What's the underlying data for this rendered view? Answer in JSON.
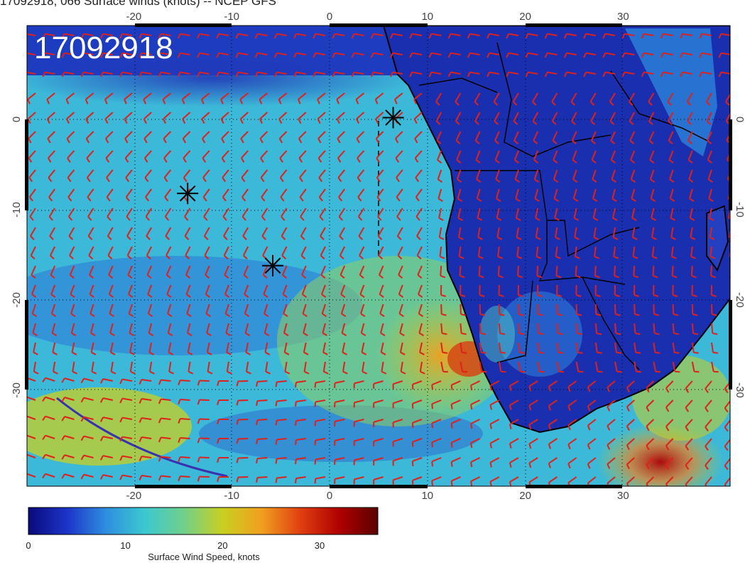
{
  "header": {
    "title": "17092918, 066 Surface winds (knots) -- NCEP GFS"
  },
  "map": {
    "overlay_label": "17092918",
    "lon_ticks": [
      "-20",
      "-10",
      "0",
      "10",
      "20",
      "30"
    ],
    "lat_ticks": [
      "0",
      "-10",
      "-20",
      "-30"
    ],
    "markers": [
      {
        "name": "marker-1",
        "lon": 6.5,
        "lat": 0.2
      },
      {
        "name": "marker-2",
        "lon": -14.5,
        "lat": -8.2
      },
      {
        "name": "marker-3",
        "lon": -5.8,
        "lat": -16.2
      }
    ],
    "barb_color": "#e0201a",
    "coast_color": "#000000"
  },
  "colorbar": {
    "label": "Surface Wind Speed, knots",
    "ticks": [
      "0",
      "10",
      "20",
      "30"
    ],
    "min": 0,
    "max": 36,
    "colors": [
      "#0a0a7a",
      "#1c34c8",
      "#2f8ee0",
      "#3cc8d0",
      "#6fd08a",
      "#c8d020",
      "#f0a020",
      "#e04010",
      "#b00000",
      "#5a0000"
    ]
  }
}
